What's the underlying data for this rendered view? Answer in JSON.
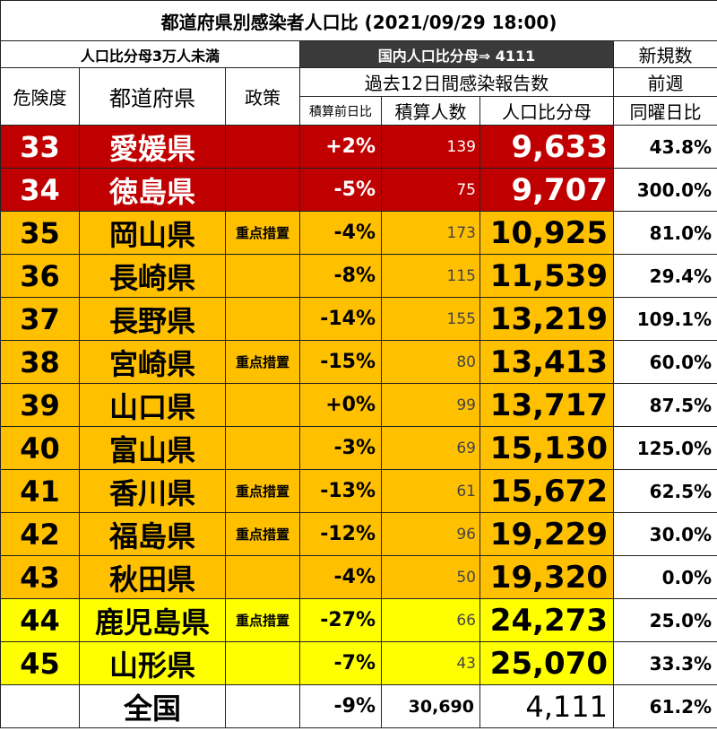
{
  "title": "都道府県別感染者人口比 (2021/09/29 18:00)",
  "header": {
    "under_30k": "人口比分母3万人未満",
    "national_ratio": "国内人口比分母⇒ 4111",
    "new_cases": "新規数",
    "risk": "危険度",
    "prefecture": "都道府県",
    "policy": "政策",
    "past12": "過去12日間感染報告数",
    "last_week": "前週",
    "cum_change": "積算前日比",
    "cum_count": "積算人数",
    "denominator": "人口比分母",
    "same_day_ratio": "同曜日比"
  },
  "rows": [
    {
      "rank": "33",
      "pref": "愛媛県",
      "policy": "",
      "change": "+2%",
      "cum": "139",
      "denom": "9,633",
      "week": "43.8%",
      "level": "red"
    },
    {
      "rank": "34",
      "pref": "徳島県",
      "policy": "",
      "change": "-5%",
      "cum": "75",
      "denom": "9,707",
      "week": "300.0%",
      "level": "red"
    },
    {
      "rank": "35",
      "pref": "岡山県",
      "policy": "重点措置",
      "change": "-4%",
      "cum": "173",
      "denom": "10,925",
      "week": "81.0%",
      "level": "orange"
    },
    {
      "rank": "36",
      "pref": "長崎県",
      "policy": "",
      "change": "-8%",
      "cum": "115",
      "denom": "11,539",
      "week": "29.4%",
      "level": "orange"
    },
    {
      "rank": "37",
      "pref": "長野県",
      "policy": "",
      "change": "-14%",
      "cum": "155",
      "denom": "13,219",
      "week": "109.1%",
      "level": "orange"
    },
    {
      "rank": "38",
      "pref": "宮崎県",
      "policy": "重点措置",
      "change": "-15%",
      "cum": "80",
      "denom": "13,413",
      "week": "60.0%",
      "level": "orange"
    },
    {
      "rank": "39",
      "pref": "山口県",
      "policy": "",
      "change": "+0%",
      "cum": "99",
      "denom": "13,717",
      "week": "87.5%",
      "level": "orange"
    },
    {
      "rank": "40",
      "pref": "富山県",
      "policy": "",
      "change": "-3%",
      "cum": "69",
      "denom": "15,130",
      "week": "125.0%",
      "level": "orange"
    },
    {
      "rank": "41",
      "pref": "香川県",
      "policy": "重点措置",
      "change": "-13%",
      "cum": "61",
      "denom": "15,672",
      "week": "62.5%",
      "level": "orange"
    },
    {
      "rank": "42",
      "pref": "福島県",
      "policy": "重点措置",
      "change": "-12%",
      "cum": "96",
      "denom": "19,229",
      "week": "30.0%",
      "level": "orange"
    },
    {
      "rank": "43",
      "pref": "秋田県",
      "policy": "",
      "change": "-4%",
      "cum": "50",
      "denom": "19,320",
      "week": "0.0%",
      "level": "orange"
    },
    {
      "rank": "44",
      "pref": "鹿児島県",
      "policy": "重点措置",
      "change": "-27%",
      "cum": "66",
      "denom": "24,273",
      "week": "25.0%",
      "level": "yellow"
    },
    {
      "rank": "45",
      "pref": "山形県",
      "policy": "",
      "change": "-7%",
      "cum": "43",
      "denom": "25,070",
      "week": "33.3%",
      "level": "yellow"
    }
  ],
  "total": {
    "label": "全国",
    "change": "-9%",
    "cum": "30,690",
    "denom": "4,111",
    "week": "61.2%"
  },
  "colors": {
    "red": "#c00000",
    "orange": "#ffc000",
    "yellow": "#ffff00",
    "dark": "#3a3a3a"
  }
}
